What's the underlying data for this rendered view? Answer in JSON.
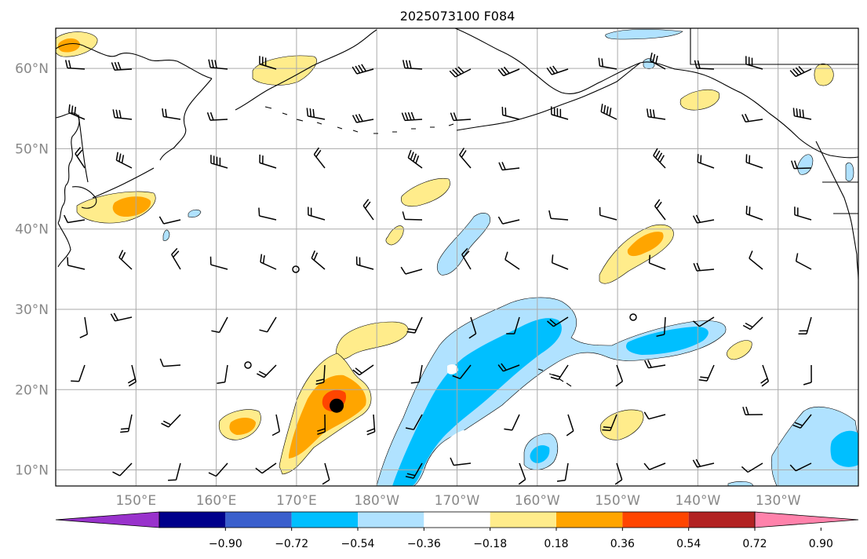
{
  "title": "2025073100 F084",
  "map": {
    "lon_range": [
      140,
      240
    ],
    "lat_range": [
      8,
      65
    ],
    "lat_labels": [
      {
        "lat": 60,
        "text": "60°N"
      },
      {
        "lat": 50,
        "text": "50°N"
      },
      {
        "lat": 40,
        "text": "40°N"
      },
      {
        "lat": 30,
        "text": "30°N"
      },
      {
        "lat": 20,
        "text": "20°N"
      },
      {
        "lat": 10,
        "text": "10°N"
      }
    ],
    "lon_labels": [
      {
        "lon": 150,
        "text": "150°E"
      },
      {
        "lon": 160,
        "text": "160°E"
      },
      {
        "lon": 170,
        "text": "170°E"
      },
      {
        "lon": 180,
        "text": "180°W"
      },
      {
        "lon": 190,
        "text": "170°W"
      },
      {
        "lon": 200,
        "text": "160°W"
      },
      {
        "lon": 210,
        "text": "150°W"
      },
      {
        "lon": 220,
        "text": "140°W"
      },
      {
        "lon": 230,
        "text": "130°W"
      }
    ],
    "storm_marker": {
      "lon": 175,
      "lat": 18
    }
  },
  "colorbar": {
    "colors": [
      "#9932cc",
      "#00008b",
      "#3a5fcd",
      "#00bfff",
      "#b0e2ff",
      "#ffffff",
      "#ffec8b",
      "#ffa500",
      "#ff4500",
      "#b22222",
      "#ff82ab"
    ],
    "labels": [
      "−0.90",
      "−0.72",
      "−0.54",
      "−0.36",
      "−0.18",
      "0.18",
      "0.36",
      "0.54",
      "0.72",
      "0.90"
    ]
  },
  "field_colors": {
    "pos1": "#ffec8b",
    "pos2": "#ffa500",
    "pos3": "#ff4500",
    "neg1": "#b0e2ff",
    "neg2": "#00bfff"
  }
}
